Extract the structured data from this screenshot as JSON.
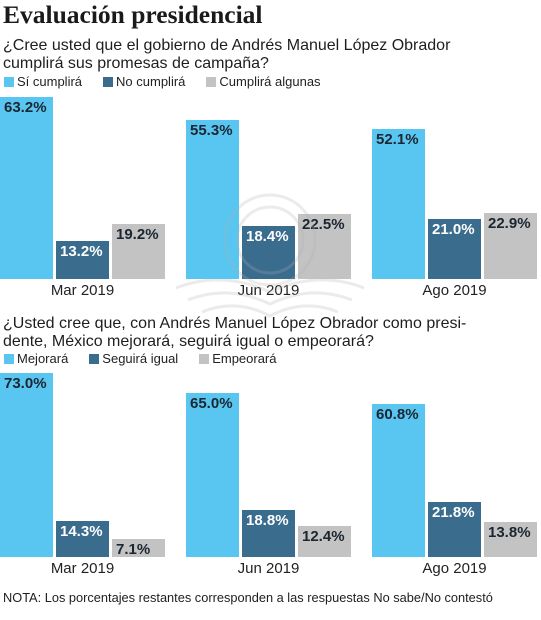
{
  "title": "Evaluación presidencial",
  "chart_data": [
    {
      "type": "bar",
      "title_lines": [
        "¿Cree usted que el gobierno de Andrés Manuel López Obrador",
        "cumplirá sus promesas de campaña?"
      ],
      "categories": [
        "Mar 2019",
        "Jun 2019",
        "Ago 2019"
      ],
      "series": [
        {
          "name": "Sí cumplirá",
          "color": "#59c6f2",
          "label_color": "#1b2631",
          "values": [
            63.2,
            55.3,
            52.1
          ],
          "labels": [
            "63.2%",
            "55.3%",
            "52.1%"
          ]
        },
        {
          "name": "No cumplirá",
          "color": "#3a6c8e",
          "label_color": "#ffffff",
          "values": [
            13.2,
            18.4,
            21.0
          ],
          "labels": [
            "13.2%",
            "18.4%",
            "21.0%"
          ]
        },
        {
          "name": "Cumplirá algunas",
          "color": "#c3c3c3",
          "label_color": "#1b2631",
          "values": [
            19.2,
            22.5,
            22.9
          ],
          "labels": [
            "19.2%",
            "22.5%",
            "22.9%"
          ]
        }
      ],
      "ylim": [
        0,
        65
      ],
      "grid": false,
      "legend": "top-left"
    },
    {
      "type": "bar",
      "title_lines": [
        "¿Usted cree que, con Andrés Manuel López Obrador como presi-",
        "dente, México mejorará, seguirá igual o empeorará?"
      ],
      "categories": [
        "Mar 2019",
        "Jun 2019",
        "Ago 2019"
      ],
      "series": [
        {
          "name": "Mejorará",
          "color": "#59c6f2",
          "label_color": "#1b2631",
          "values": [
            73.0,
            65.0,
            60.8
          ],
          "labels": [
            "73.0%",
            "65.0%",
            "60.8%"
          ]
        },
        {
          "name": "Seguirá igual",
          "color": "#3a6c8e",
          "label_color": "#ffffff",
          "values": [
            14.3,
            18.8,
            21.8
          ],
          "labels": [
            "14.3%",
            "18.8%",
            "21.8%"
          ]
        },
        {
          "name": "Empeorará",
          "color": "#c3c3c3",
          "label_color": "#1b2631",
          "values": [
            7.1,
            12.4,
            13.8
          ],
          "labels": [
            "7.1%",
            "12.4%",
            "13.8%"
          ]
        }
      ],
      "ylim": [
        0,
        75
      ],
      "grid": false,
      "legend": "top-left"
    }
  ],
  "note": "NOTA: Los porcentajes restantes corresponden a las respuestas No sabe/No contestó"
}
